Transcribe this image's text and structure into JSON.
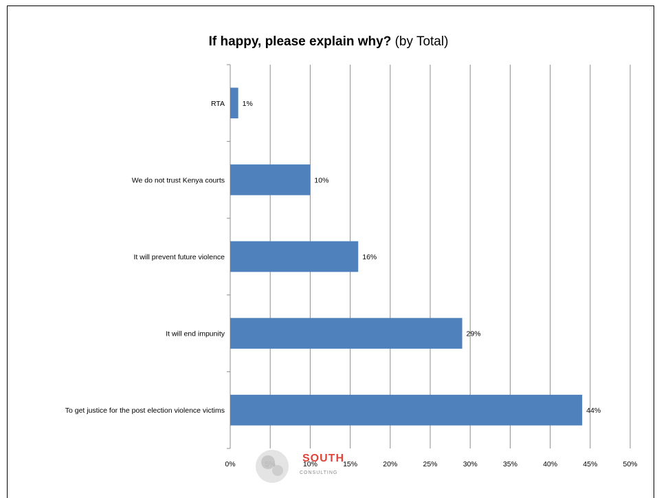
{
  "chart_data": {
    "type": "bar",
    "orientation": "horizontal",
    "title_bold": "If happy, please explain why?",
    "title_rest": "(by Total)",
    "categories": [
      "RTA",
      "We do not trust Kenya courts",
      "It will prevent future violence",
      "It will end impunity",
      "To get justice for the post election violence victims"
    ],
    "values": [
      1,
      10,
      16,
      29,
      44
    ],
    "value_labels": [
      "1%",
      "10%",
      "16%",
      "29%",
      "44%"
    ],
    "xlim": [
      0,
      50
    ],
    "x_ticks": [
      0,
      5,
      10,
      15,
      20,
      25,
      30,
      35,
      40,
      45,
      50
    ],
    "x_tick_labels": [
      "0%",
      "5%",
      "10%",
      "15%",
      "20%",
      "25%",
      "30%",
      "35%",
      "40%",
      "45%",
      "50%"
    ],
    "grid": "vertical",
    "bar_color": "#4f81bd",
    "legend": "none"
  },
  "logo": {
    "name": "south-consulting-logo",
    "word": "SOUTH",
    "sub": "CONSULTING"
  }
}
